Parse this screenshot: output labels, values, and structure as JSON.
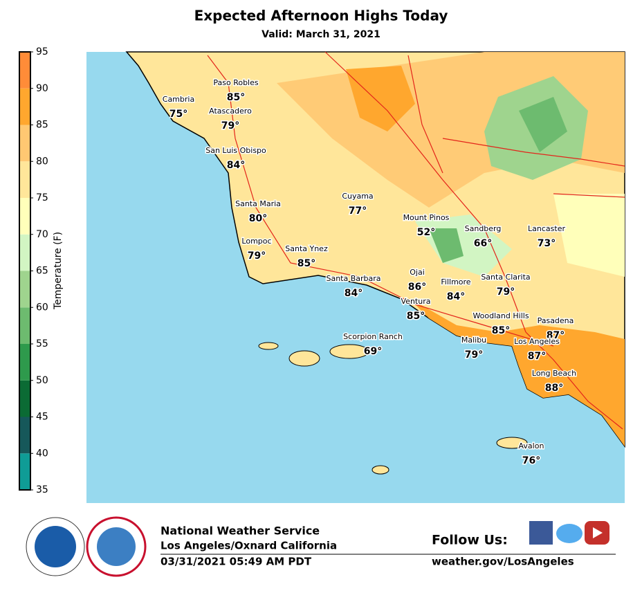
{
  "header": {
    "title": "Expected Afternoon Highs Today",
    "subtitle": "Valid: March 31, 2021"
  },
  "colorbar": {
    "label": "Temperature (F)",
    "lim": [
      35,
      95
    ],
    "ticks": [
      35,
      40,
      45,
      50,
      55,
      60,
      65,
      70,
      75,
      80,
      85,
      90,
      95
    ],
    "colors": [
      "#0f9c96",
      "#16585a",
      "#0b6b34",
      "#2e9a4c",
      "#6dbb6f",
      "#9fd48e",
      "#d2f5c3",
      "#ffffba",
      "#ffe69a",
      "#ffc872",
      "#ffa72e",
      "#ff8c38"
    ]
  },
  "cities": [
    {
      "name": "Paso Robles",
      "temp": "85°"
    },
    {
      "name": "Cambria",
      "temp": "75°"
    },
    {
      "name": "Atascadero",
      "temp": "79°"
    },
    {
      "name": "San Luis Obispo",
      "temp": "84°"
    },
    {
      "name": "Cuyama",
      "temp": "77°"
    },
    {
      "name": "Santa Maria",
      "temp": "80°"
    },
    {
      "name": "Mount Pinos",
      "temp": "52°"
    },
    {
      "name": "Sandberg",
      "temp": "66°"
    },
    {
      "name": "Lancaster",
      "temp": "73°"
    },
    {
      "name": "Lompoc",
      "temp": "79°"
    },
    {
      "name": "Santa Ynez",
      "temp": "85°"
    },
    {
      "name": "Ojai",
      "temp": "86°"
    },
    {
      "name": "Santa Barbara",
      "temp": "84°"
    },
    {
      "name": "Fillmore",
      "temp": "84°"
    },
    {
      "name": "Santa Clarita",
      "temp": "79°"
    },
    {
      "name": "Ventura",
      "temp": "85°"
    },
    {
      "name": "Woodland Hills",
      "temp": "85°"
    },
    {
      "name": "Pasadena",
      "temp": "87°"
    },
    {
      "name": "Scorpion Ranch",
      "temp": "69°"
    },
    {
      "name": "Malibu",
      "temp": "79°"
    },
    {
      "name": "Los Angeles",
      "temp": "87°"
    },
    {
      "name": "Long Beach",
      "temp": "88°"
    },
    {
      "name": "Avalon",
      "temp": "76°"
    }
  ],
  "footer": {
    "org": "National Weather Service",
    "office": "Los Angeles/Oxnard California",
    "timestamp": "03/31/2021 05:49 AM PDT",
    "follow": "Follow Us:",
    "url": "weather.gov/LosAngeles"
  }
}
